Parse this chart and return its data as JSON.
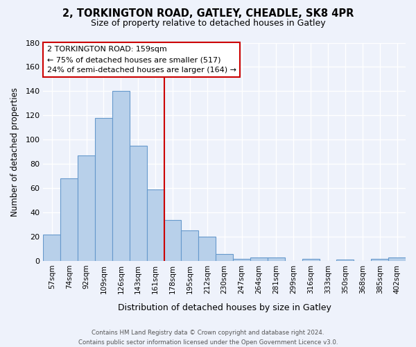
{
  "title": "2, TORKINGTON ROAD, GATLEY, CHEADLE, SK8 4PR",
  "subtitle": "Size of property relative to detached houses in Gatley",
  "xlabel": "Distribution of detached houses by size in Gatley",
  "ylabel": "Number of detached properties",
  "categories": [
    "57sqm",
    "74sqm",
    "92sqm",
    "109sqm",
    "126sqm",
    "143sqm",
    "161sqm",
    "178sqm",
    "195sqm",
    "212sqm",
    "230sqm",
    "247sqm",
    "264sqm",
    "281sqm",
    "299sqm",
    "316sqm",
    "333sqm",
    "350sqm",
    "368sqm",
    "385sqm",
    "402sqm"
  ],
  "values": [
    22,
    68,
    87,
    118,
    140,
    95,
    59,
    34,
    25,
    20,
    6,
    2,
    3,
    3,
    0,
    2,
    0,
    1,
    0,
    2,
    3
  ],
  "bar_color": "#b8d0ea",
  "bar_edge_color": "#6699cc",
  "ref_bar_index": 6,
  "annotation_title": "2 TORKINGTON ROAD: 159sqm",
  "annotation_line1": "← 75% of detached houses are smaller (517)",
  "annotation_line2": "24% of semi-detached houses are larger (164) →",
  "annotation_box_color": "#ffffff",
  "annotation_box_edge": "#cc0000",
  "vline_color": "#cc0000",
  "ylim": [
    0,
    180
  ],
  "yticks": [
    0,
    20,
    40,
    60,
    80,
    100,
    120,
    140,
    160,
    180
  ],
  "footer1": "Contains HM Land Registry data © Crown copyright and database right 2024.",
  "footer2": "Contains public sector information licensed under the Open Government Licence v3.0.",
  "bg_color": "#eef2fb",
  "grid_color": "#ffffff"
}
